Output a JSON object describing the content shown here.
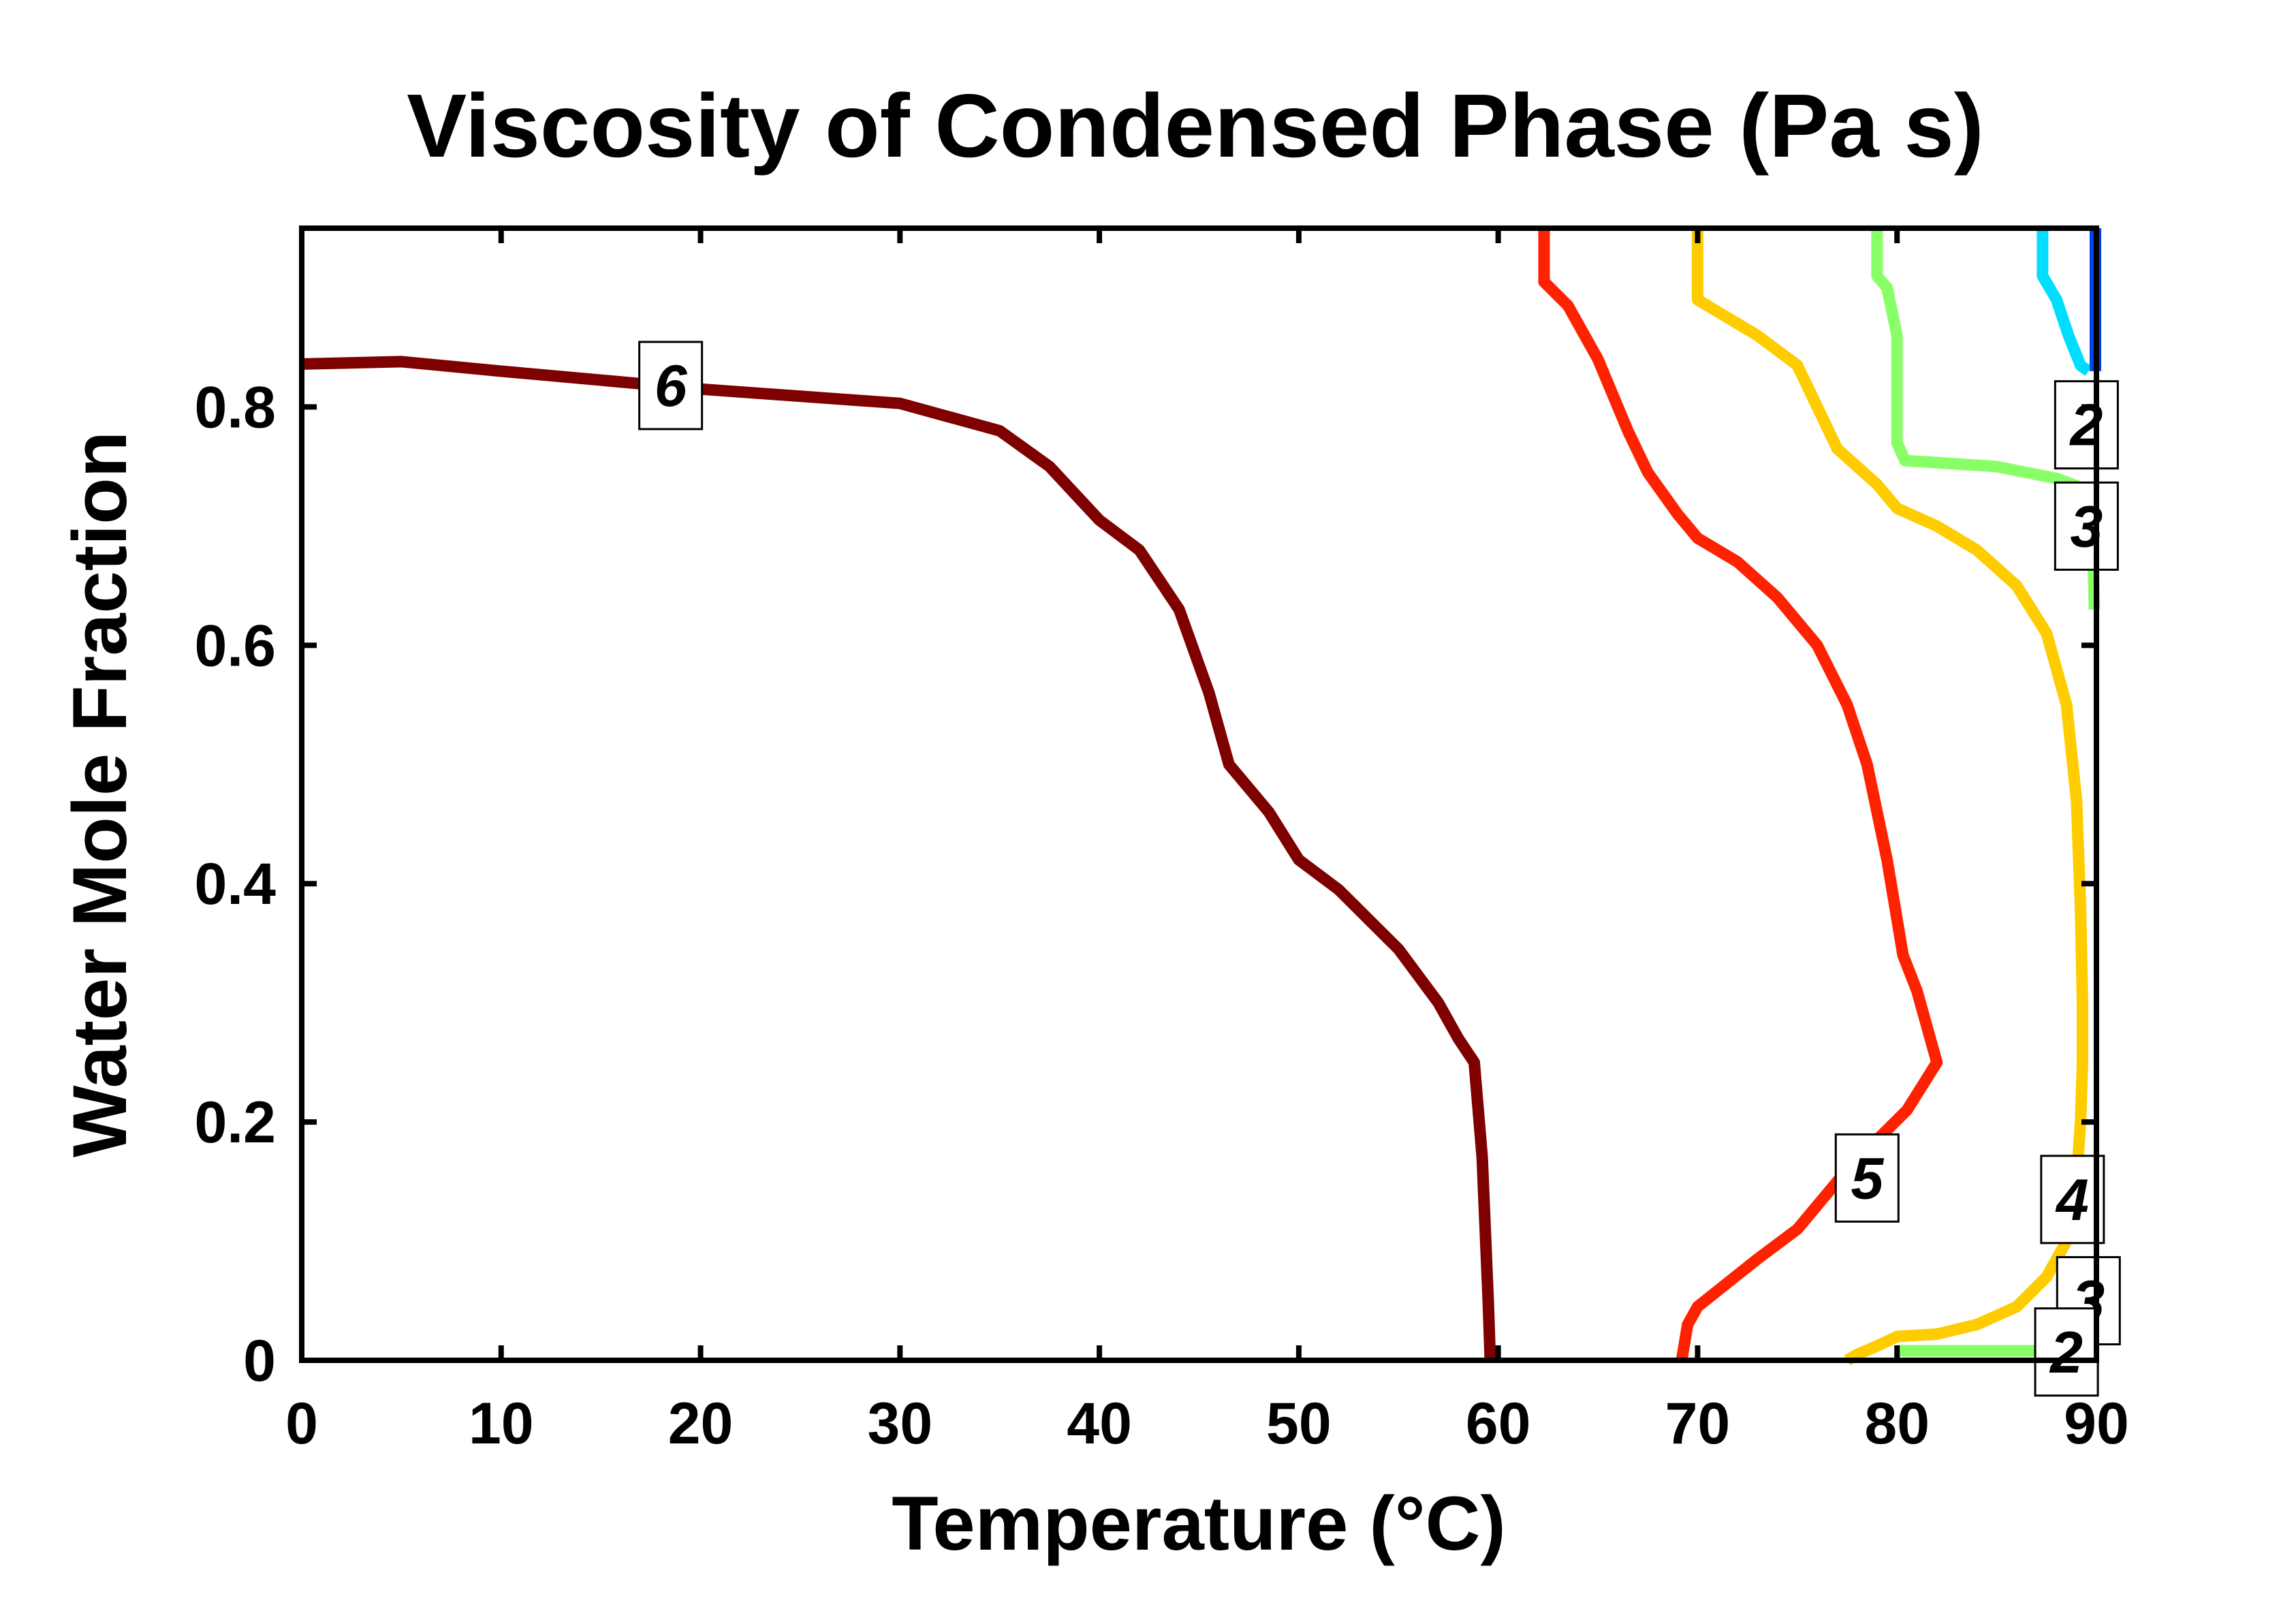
{
  "chart_data": {
    "type": "contour",
    "title": "Viscosity of Condensed Phase (Pa s)",
    "xlabel": "Temperature (°C)",
    "ylabel": "Water Mole Fraction",
    "xlim": [
      0,
      90
    ],
    "ylim": [
      0,
      0.95
    ],
    "xticks": [
      {
        "value": 0,
        "label": "0"
      },
      {
        "value": 10,
        "label": "10"
      },
      {
        "value": 20,
        "label": "20"
      },
      {
        "value": 30,
        "label": "30"
      },
      {
        "value": 40,
        "label": "40"
      },
      {
        "value": 50,
        "label": "50"
      },
      {
        "value": 60,
        "label": "60"
      },
      {
        "value": 70,
        "label": "70"
      },
      {
        "value": 80,
        "label": "80"
      },
      {
        "value": 90,
        "label": "90"
      }
    ],
    "yticks": [
      {
        "value": 0,
        "label": "0"
      },
      {
        "value": 0.2,
        "label": "0.2"
      },
      {
        "value": 0.4,
        "label": "0.4"
      },
      {
        "value": 0.6,
        "label": "0.6"
      },
      {
        "value": 0.8,
        "label": "0.8"
      }
    ],
    "contours": [
      {
        "level": "6",
        "color": "#7f0000",
        "points": [
          [
            0,
            0.836
          ],
          [
            5,
            0.838
          ],
          [
            10,
            0.83
          ],
          [
            20,
            0.815
          ],
          [
            30,
            0.803
          ],
          [
            35,
            0.78
          ],
          [
            37.5,
            0.75
          ],
          [
            40,
            0.705
          ],
          [
            42,
            0.68
          ],
          [
            44,
            0.63
          ],
          [
            45.5,
            0.56
          ],
          [
            46.5,
            0.5
          ],
          [
            48.5,
            0.46
          ],
          [
            50,
            0.42
          ],
          [
            52,
            0.395
          ],
          [
            55,
            0.345
          ],
          [
            57,
            0.3
          ],
          [
            58,
            0.27
          ],
          [
            58.8,
            0.25
          ],
          [
            59.2,
            0.17
          ],
          [
            59.5,
            0.05
          ],
          [
            59.6,
            0
          ]
        ]
      },
      {
        "level": "5",
        "color": "#ff2200",
        "points": [
          [
            62.3,
            0.95
          ],
          [
            62.3,
            0.905
          ],
          [
            63.5,
            0.885
          ],
          [
            65,
            0.84
          ],
          [
            66.5,
            0.78
          ],
          [
            67.5,
            0.745
          ],
          [
            69,
            0.71
          ],
          [
            70,
            0.69
          ],
          [
            72,
            0.67
          ],
          [
            74,
            0.64
          ],
          [
            76,
            0.6
          ],
          [
            77.5,
            0.55
          ],
          [
            78.5,
            0.5
          ],
          [
            79.5,
            0.42
          ],
          [
            80.3,
            0.34
          ],
          [
            81,
            0.31
          ],
          [
            82,
            0.25
          ],
          [
            80.5,
            0.21
          ],
          [
            79,
            0.185
          ],
          [
            77,
            0.15
          ],
          [
            75,
            0.11
          ],
          [
            73,
            0.085
          ],
          [
            70,
            0.045
          ],
          [
            69.5,
            0.03
          ],
          [
            69.2,
            0
          ]
        ]
      },
      {
        "level": "4",
        "color": "#ffcc00",
        "points": [
          [
            70,
            0.95
          ],
          [
            70,
            0.89
          ],
          [
            71,
            0.88
          ],
          [
            73,
            0.86
          ],
          [
            75,
            0.835
          ],
          [
            76,
            0.8
          ],
          [
            77,
            0.765
          ],
          [
            78,
            0.75
          ],
          [
            79,
            0.735
          ],
          [
            80,
            0.715
          ],
          [
            82,
            0.7
          ],
          [
            84,
            0.68
          ],
          [
            86,
            0.65
          ],
          [
            87.5,
            0.61
          ],
          [
            88.5,
            0.55
          ],
          [
            89,
            0.47
          ],
          [
            89.2,
            0.38
          ],
          [
            89.3,
            0.3
          ],
          [
            89.3,
            0.25
          ],
          [
            89.2,
            0.2
          ],
          [
            89,
            0.15
          ],
          [
            88.5,
            0.1
          ],
          [
            87.5,
            0.07
          ],
          [
            86,
            0.045
          ],
          [
            84,
            0.03
          ],
          [
            82,
            0.022
          ],
          [
            80,
            0.02
          ],
          [
            79,
            0.012
          ],
          [
            78,
            0.005
          ],
          [
            77.5,
            0
          ]
        ]
      },
      {
        "level": "3",
        "color": "#88ff66",
        "points": [
          [
            79,
            0.95
          ],
          [
            79,
            0.91
          ],
          [
            79.5,
            0.9
          ],
          [
            80,
            0.86
          ],
          [
            80,
            0.77
          ],
          [
            80.4,
            0.755
          ],
          [
            85,
            0.75
          ],
          [
            88,
            0.74
          ],
          [
            89.6,
            0.73
          ],
          [
            89.8,
            0.69
          ],
          [
            89.9,
            0.63
          ]
        ]
      },
      {
        "level": "3",
        "color": "#88ff66",
        "points": [
          [
            80,
            0.008
          ],
          [
            84,
            0.008
          ],
          [
            87,
            0.008
          ],
          [
            88.5,
            0.009
          ],
          [
            89.5,
            0.011
          ]
        ]
      },
      {
        "level": "2",
        "color": "#00ddff",
        "points": [
          [
            87.3,
            0.95
          ],
          [
            87.3,
            0.91
          ],
          [
            88,
            0.89
          ],
          [
            88.6,
            0.86
          ],
          [
            89.2,
            0.835
          ],
          [
            89.6,
            0.83
          ]
        ]
      },
      {
        "level": "2",
        "color": "#00ddff",
        "points": [
          [
            88.5,
            0.001
          ],
          [
            89.3,
            0.002
          ],
          [
            89.7,
            0.004
          ]
        ]
      },
      {
        "level": "1",
        "color": "#0044ee",
        "points": [
          [
            89.95,
            0.95
          ],
          [
            89.95,
            0.83
          ]
        ]
      }
    ],
    "contour_labels": [
      {
        "text": "6",
        "x": 18.5,
        "y": 0.818
      },
      {
        "text": "5",
        "x": 78.5,
        "y": 0.153
      },
      {
        "text": "4",
        "x": 88.8,
        "y": 0.135
      },
      {
        "text": "3",
        "x": 89.5,
        "y": 0.7
      },
      {
        "text": "3",
        "x": 89.6,
        "y": 0.05
      },
      {
        "text": "2",
        "x": 89.5,
        "y": 0.785
      },
      {
        "text": "2",
        "x": 88.5,
        "y": 0.007
      }
    ]
  }
}
